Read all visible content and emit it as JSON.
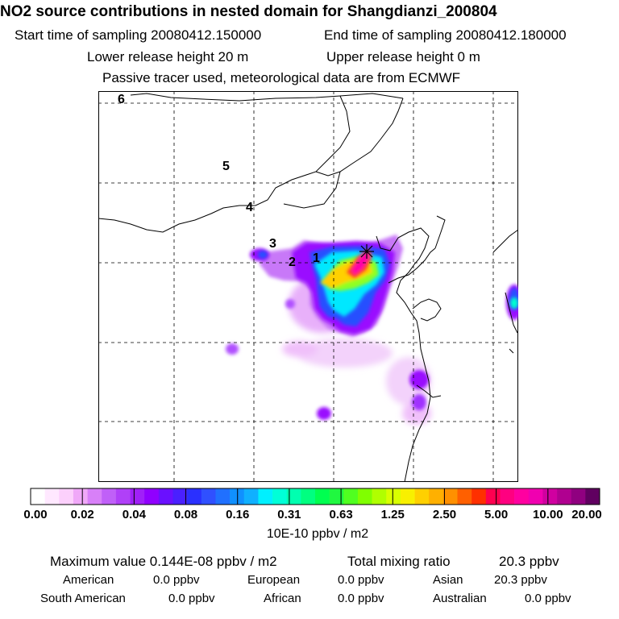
{
  "header": {
    "title": "NO2 source contributions in nested domain for Shangdianzi_200804",
    "start_label": "Start time of sampling 20080412.150000",
    "end_label": "End time of sampling 20080412.180000",
    "lower_label": "Lower release height   20 m",
    "upper_label": "Upper release height    0 m",
    "tracer_note": "Passive tracer used, meteorological data are from ECMWF"
  },
  "map": {
    "contour_labels": [
      "1",
      "2",
      "3",
      "4",
      "5",
      "6"
    ],
    "receptor_marker": "star-marker",
    "plume_colors": [
      "#ff00aa",
      "#ff3030",
      "#ffd000",
      "#a0ff00",
      "#00ff90",
      "#00ffee",
      "#00aaff",
      "#3040ff",
      "#8a00ff",
      "#c070ff",
      "#f0c0ff"
    ]
  },
  "colorbar": {
    "ticks": [
      "0.00",
      "0.02",
      "0.04",
      "0.08",
      "0.16",
      "0.31",
      "0.63",
      "1.25",
      "2.50",
      "5.00",
      "10.00",
      "20.00"
    ],
    "colors": [
      "#ffffff",
      "#ffe8ff",
      "#fcd0fc",
      "#f0a8f8",
      "#d880f8",
      "#c060f8",
      "#b040f8",
      "#a020f8",
      "#9000ff",
      "#6a10ff",
      "#4a20ff",
      "#2a30ff",
      "#3050ff",
      "#2070ff",
      "#1090ff",
      "#10b0ff",
      "#00f0ff",
      "#00ffd8",
      "#00ffb0",
      "#00ff80",
      "#00ff50",
      "#20f840",
      "#50ff20",
      "#80ff00",
      "#b0ff00",
      "#d8ff00",
      "#f8f000",
      "#ffd000",
      "#ffb000",
      "#ff9000",
      "#ff6000",
      "#ff3000",
      "#ff0050",
      "#ff0080",
      "#ff00a0",
      "#f000b0",
      "#d000a0",
      "#b00090",
      "#900080",
      "#600060"
    ],
    "unit": "10E-10 ppbv / m2"
  },
  "stats": {
    "max_label": "Maximum value  0.144E-08 ppbv / m2",
    "total_label": "Total mixing ratio",
    "total_value": "20.3 ppbv",
    "american_label": "American",
    "american_value": "0.0 ppbv",
    "european_label": "European",
    "european_value": "0.0 ppbv",
    "asian_label": "Asian",
    "asian_value": "20.3 ppbv",
    "south_american_label": "South American",
    "south_american_value": "0.0 ppbv",
    "african_label": "African",
    "african_value": "0.0 ppbv",
    "australian_label": "Australian",
    "australian_value": "0.0 ppbv"
  }
}
